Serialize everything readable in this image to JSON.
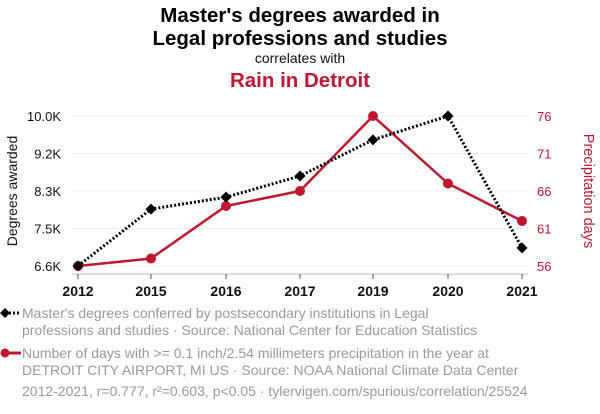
{
  "header": {
    "title_line1": "Master's degrees awarded in",
    "title_line2": "Legal professions and studies",
    "subtitle": "correlates with",
    "title2": "Rain in Detroit"
  },
  "colors": {
    "series1": "#000000",
    "series2": "#bf1730",
    "grid": "#efefef",
    "axis": "#bdbdbd",
    "legend_text": "#9a9a9a"
  },
  "legend": [
    {
      "icon": "black-dotted-diamond-line-icon",
      "text_line1": "Master's degrees conferred by postsecondary institutions in Legal",
      "text_line2": "professions and studies · Source: National Center for Education Statistics"
    },
    {
      "icon": "red-solid-circle-line-icon",
      "text_line1": "Number of days with >= 0.1 inch/2.54 millimeters precipitation in the year at",
      "text_line2": "DETROIT CITY AIRPORT, MI US · Source: NOAA National Climate Data Center"
    }
  ],
  "footer": "2012-2021, r=0.777, r²=0.603, p<0.05 · tylervigen.com/spurious/correlation/25524",
  "chart_data": {
    "type": "line",
    "title": "Master's degrees awarded in Legal professions and studies correlates with Rain in Detroit",
    "categories": [
      "2012",
      "2015",
      "2016",
      "2017",
      "2019",
      "2020",
      "2021"
    ],
    "xlabel": "",
    "grid": true,
    "legend_position": "bottom",
    "series": [
      {
        "name": "Master's degrees conferred by postsecondary institutions in Legal professions and studies",
        "axis": "left",
        "style": "dotted",
        "marker": "diamond",
        "color": "#000000",
        "values": [
          6600,
          7890,
          8160,
          8640,
          9460,
          10000,
          7010
        ]
      },
      {
        "name": "Number of days with >= 0.1 inch/2.54 millimeters precipitation in the year at DETROIT CITY AIRPORT, MI US",
        "axis": "right",
        "style": "solid",
        "marker": "circle",
        "color": "#bf1730",
        "values": [
          56,
          57,
          64,
          66,
          76,
          67,
          62
        ]
      }
    ],
    "y_left": {
      "label": "Degrees awarded",
      "ylim": [
        6600,
        10000
      ],
      "ticks": [
        6600,
        7450,
        8300,
        9150,
        10000
      ],
      "tick_labels": [
        "6.6K",
        "7.5K",
        "8.3K",
        "9.2K",
        "10.0K"
      ]
    },
    "y_right": {
      "label": "Precipitation days",
      "ylim": [
        56,
        76
      ],
      "ticks": [
        56,
        61,
        66,
        71,
        76
      ],
      "tick_labels": [
        "56",
        "61",
        "66",
        "71",
        "76"
      ]
    }
  }
}
